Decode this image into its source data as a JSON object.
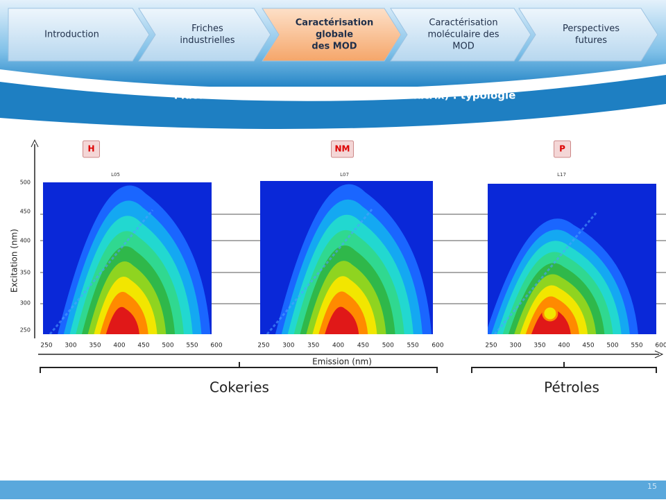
{
  "header": {
    "steps": [
      {
        "lines": [
          "Introduction"
        ]
      },
      {
        "lines": [
          "Friches",
          "industrielles"
        ]
      },
      {
        "lines": [
          "Caractérisation",
          "globale",
          "des MOD"
        ]
      },
      {
        "lines": [
          "Caractérisation",
          "moléculaire des",
          "MOD"
        ]
      },
      {
        "lines": [
          "Perspectives",
          "futures"
        ]
      }
    ],
    "title": "Fluorescence EEM (Excitation-Emission Matrix) : typologie"
  },
  "figure": {
    "y_axis_label": "Excitation (nm)",
    "y_ticks": [
      "500",
      "450",
      "400",
      "350",
      "300",
      "250"
    ],
    "x_axis_label": "Emission (nm)",
    "x_ticks": [
      "250",
      "300",
      "350",
      "400",
      "450",
      "500",
      "550",
      "600"
    ],
    "panels": [
      {
        "tag": "H",
        "sample": "L05"
      },
      {
        "tag": "NM",
        "sample": "L07"
      },
      {
        "tag": "P",
        "sample": "L17"
      }
    ],
    "groups": [
      "Cokeries",
      "Pétroles"
    ]
  },
  "footer": {
    "page_number": "15"
  }
}
